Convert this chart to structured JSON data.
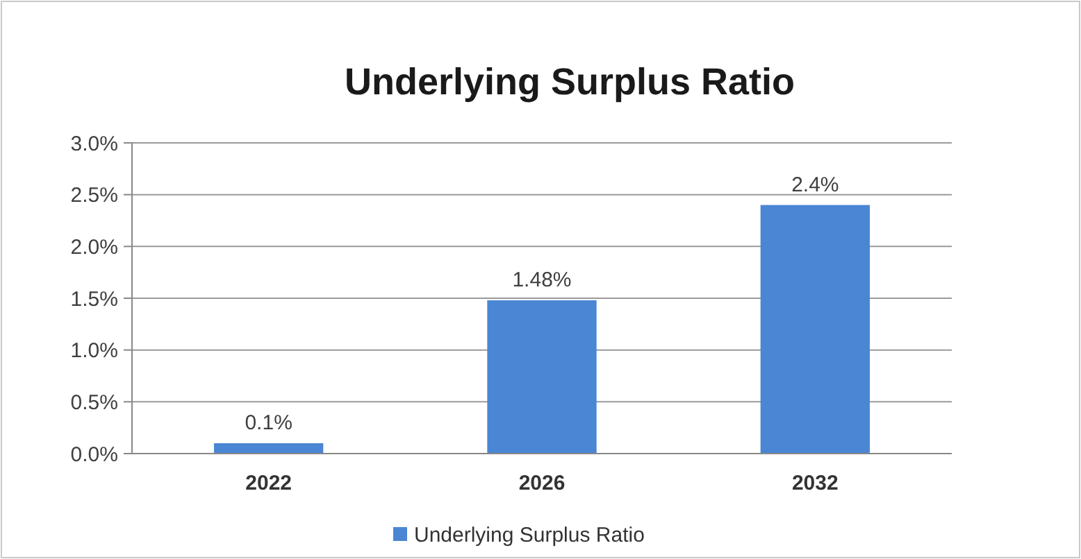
{
  "chart_data": {
    "type": "bar",
    "title": "Underlying Surplus Ratio",
    "categories": [
      "2022",
      "2026",
      "2032"
    ],
    "series": [
      {
        "name": "Underlying Surplus Ratio",
        "color": "#4a86d4",
        "values": [
          0.1,
          1.48,
          2.4
        ],
        "value_labels": [
          "0.1%",
          "1.48%",
          "2.4%"
        ]
      }
    ],
    "ylim": [
      0,
      3
    ],
    "yticks": [
      {
        "value": 0,
        "label": "0.0%"
      },
      {
        "value": 0.5,
        "label": "0.5%"
      },
      {
        "value": 1,
        "label": "1.0%"
      },
      {
        "value": 1.5,
        "label": "1.5%"
      },
      {
        "value": 2,
        "label": "2.0%"
      },
      {
        "value": 2.5,
        "label": "2.5%"
      },
      {
        "value": 3,
        "label": "3.0%"
      }
    ],
    "grid": "y",
    "legend": "bottom"
  }
}
